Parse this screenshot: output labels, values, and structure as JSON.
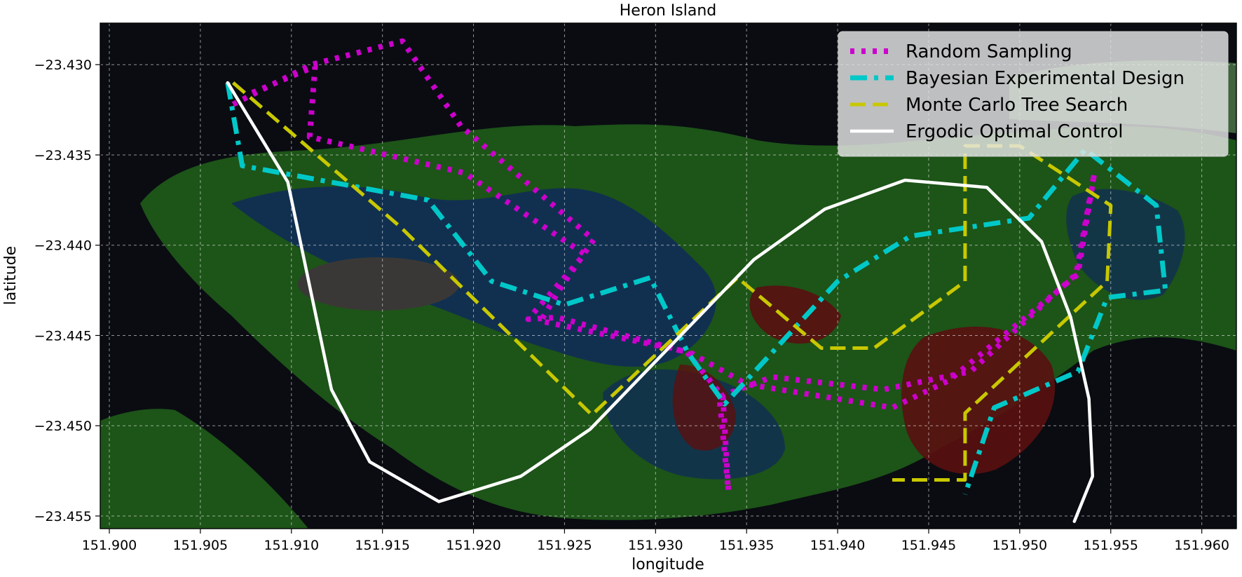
{
  "chart_data": {
    "type": "line",
    "title": "Heron Island",
    "xlabel": "longitude",
    "ylabel": "latitude",
    "xlim": [
      151.8995,
      151.9619
    ],
    "ylim": [
      -23.4557,
      -23.4277
    ],
    "x_ticks": [
      151.9,
      151.905,
      151.91,
      151.915,
      151.92,
      151.925,
      151.93,
      151.935,
      151.94,
      151.945,
      151.95,
      151.955,
      151.96
    ],
    "y_ticks": [
      -23.455,
      -23.45,
      -23.445,
      -23.44,
      -23.435,
      -23.43
    ],
    "x_tick_labels": [
      "151.900",
      "151.905",
      "151.910",
      "151.915",
      "151.920",
      "151.925",
      "151.930",
      "151.935",
      "151.940",
      "151.945",
      "151.950",
      "151.955",
      "151.960"
    ],
    "y_tick_labels": [
      "−23.455",
      "−23.450",
      "−23.445",
      "−23.440",
      "−23.435",
      "−23.430"
    ],
    "grid": true,
    "legend_position": "top-right",
    "background": "classified satellite map (black water, green shallows, blue channels, red patches, grey island)",
    "series": [
      {
        "name": "Random Sampling",
        "color": "#cc00cc",
        "style": "dotted",
        "points": [
          [
            151.9068,
            -23.4322
          ],
          [
            151.9111,
            -23.43
          ],
          [
            151.9161,
            -23.4287
          ],
          [
            151.9193,
            -23.4334
          ],
          [
            151.9266,
            -23.4397
          ],
          [
            151.9247,
            -23.4425
          ],
          [
            151.9237,
            -23.4442
          ],
          [
            151.9317,
            -23.4459
          ],
          [
            151.9337,
            -23.4484
          ],
          [
            151.934,
            -23.4536
          ],
          [
            151.9335,
            -23.4484
          ],
          [
            151.9364,
            -23.4473
          ],
          [
            151.9425,
            -23.448
          ],
          [
            151.9473,
            -23.447
          ],
          [
            151.9531,
            -23.4416
          ],
          [
            151.9541,
            -23.436
          ],
          [
            151.9532,
            -23.4416
          ],
          [
            151.9461,
            -23.4475
          ],
          [
            151.943,
            -23.449
          ],
          [
            151.935,
            -23.4477
          ],
          [
            151.932,
            -23.446
          ],
          [
            151.9246,
            -23.444
          ],
          [
            151.923,
            -23.4441
          ],
          [
            151.9261,
            -23.4405
          ],
          [
            151.9195,
            -23.436
          ],
          [
            151.911,
            -23.434
          ],
          [
            151.9113,
            -23.4301
          ],
          [
            151.9075,
            -23.4317
          ]
        ]
      },
      {
        "name": "Bayesian Experimental Design",
        "color": "#00c8c8",
        "style": "dashdot",
        "points": [
          [
            151.9065,
            -23.431
          ],
          [
            151.9073,
            -23.4356
          ],
          [
            151.9175,
            -23.4375
          ],
          [
            151.921,
            -23.442
          ],
          [
            151.925,
            -23.4433
          ],
          [
            151.9297,
            -23.4418
          ],
          [
            151.9318,
            -23.446
          ],
          [
            151.9338,
            -23.4488
          ],
          [
            151.94,
            -23.442
          ],
          [
            151.944,
            -23.4395
          ],
          [
            151.9505,
            -23.4385
          ],
          [
            151.9536,
            -23.4347
          ],
          [
            151.9575,
            -23.4378
          ],
          [
            151.958,
            -23.4425
          ],
          [
            151.9548,
            -23.4429
          ],
          [
            151.9532,
            -23.447
          ],
          [
            151.9486,
            -23.449
          ],
          [
            151.947,
            -23.4538
          ]
        ]
      },
      {
        "name": "Monte Carlo Tree Search",
        "color": "#c8c800",
        "style": "dashed",
        "points": [
          [
            151.9068,
            -23.431
          ],
          [
            151.916,
            -23.439
          ],
          [
            151.9265,
            -23.4494
          ],
          [
            151.9345,
            -23.4418
          ],
          [
            151.9391,
            -23.4457
          ],
          [
            151.942,
            -23.4457
          ],
          [
            151.947,
            -23.442
          ],
          [
            151.947,
            -23.4345
          ],
          [
            151.95,
            -23.4345
          ],
          [
            151.955,
            -23.4378
          ],
          [
            151.9548,
            -23.442
          ],
          [
            151.947,
            -23.4493
          ],
          [
            151.947,
            -23.453
          ],
          [
            151.943,
            -23.453
          ]
        ]
      },
      {
        "name": "Ergodic Optimal Control",
        "color": "#ffffff",
        "style": "solid",
        "points": [
          [
            151.9065,
            -23.431
          ],
          [
            151.9098,
            -23.4365
          ],
          [
            151.9122,
            -23.448
          ],
          [
            151.9143,
            -23.452
          ],
          [
            151.9181,
            -23.4542
          ],
          [
            151.9226,
            -23.4528
          ],
          [
            151.9264,
            -23.4502
          ],
          [
            151.9354,
            -23.4408
          ],
          [
            151.9393,
            -23.438
          ],
          [
            151.9437,
            -23.4364
          ],
          [
            151.9482,
            -23.4368
          ],
          [
            151.9512,
            -23.4398
          ],
          [
            151.9528,
            -23.444
          ],
          [
            151.9538,
            -23.4485
          ],
          [
            151.954,
            -23.4528
          ],
          [
            151.953,
            -23.4553
          ]
        ]
      }
    ]
  }
}
